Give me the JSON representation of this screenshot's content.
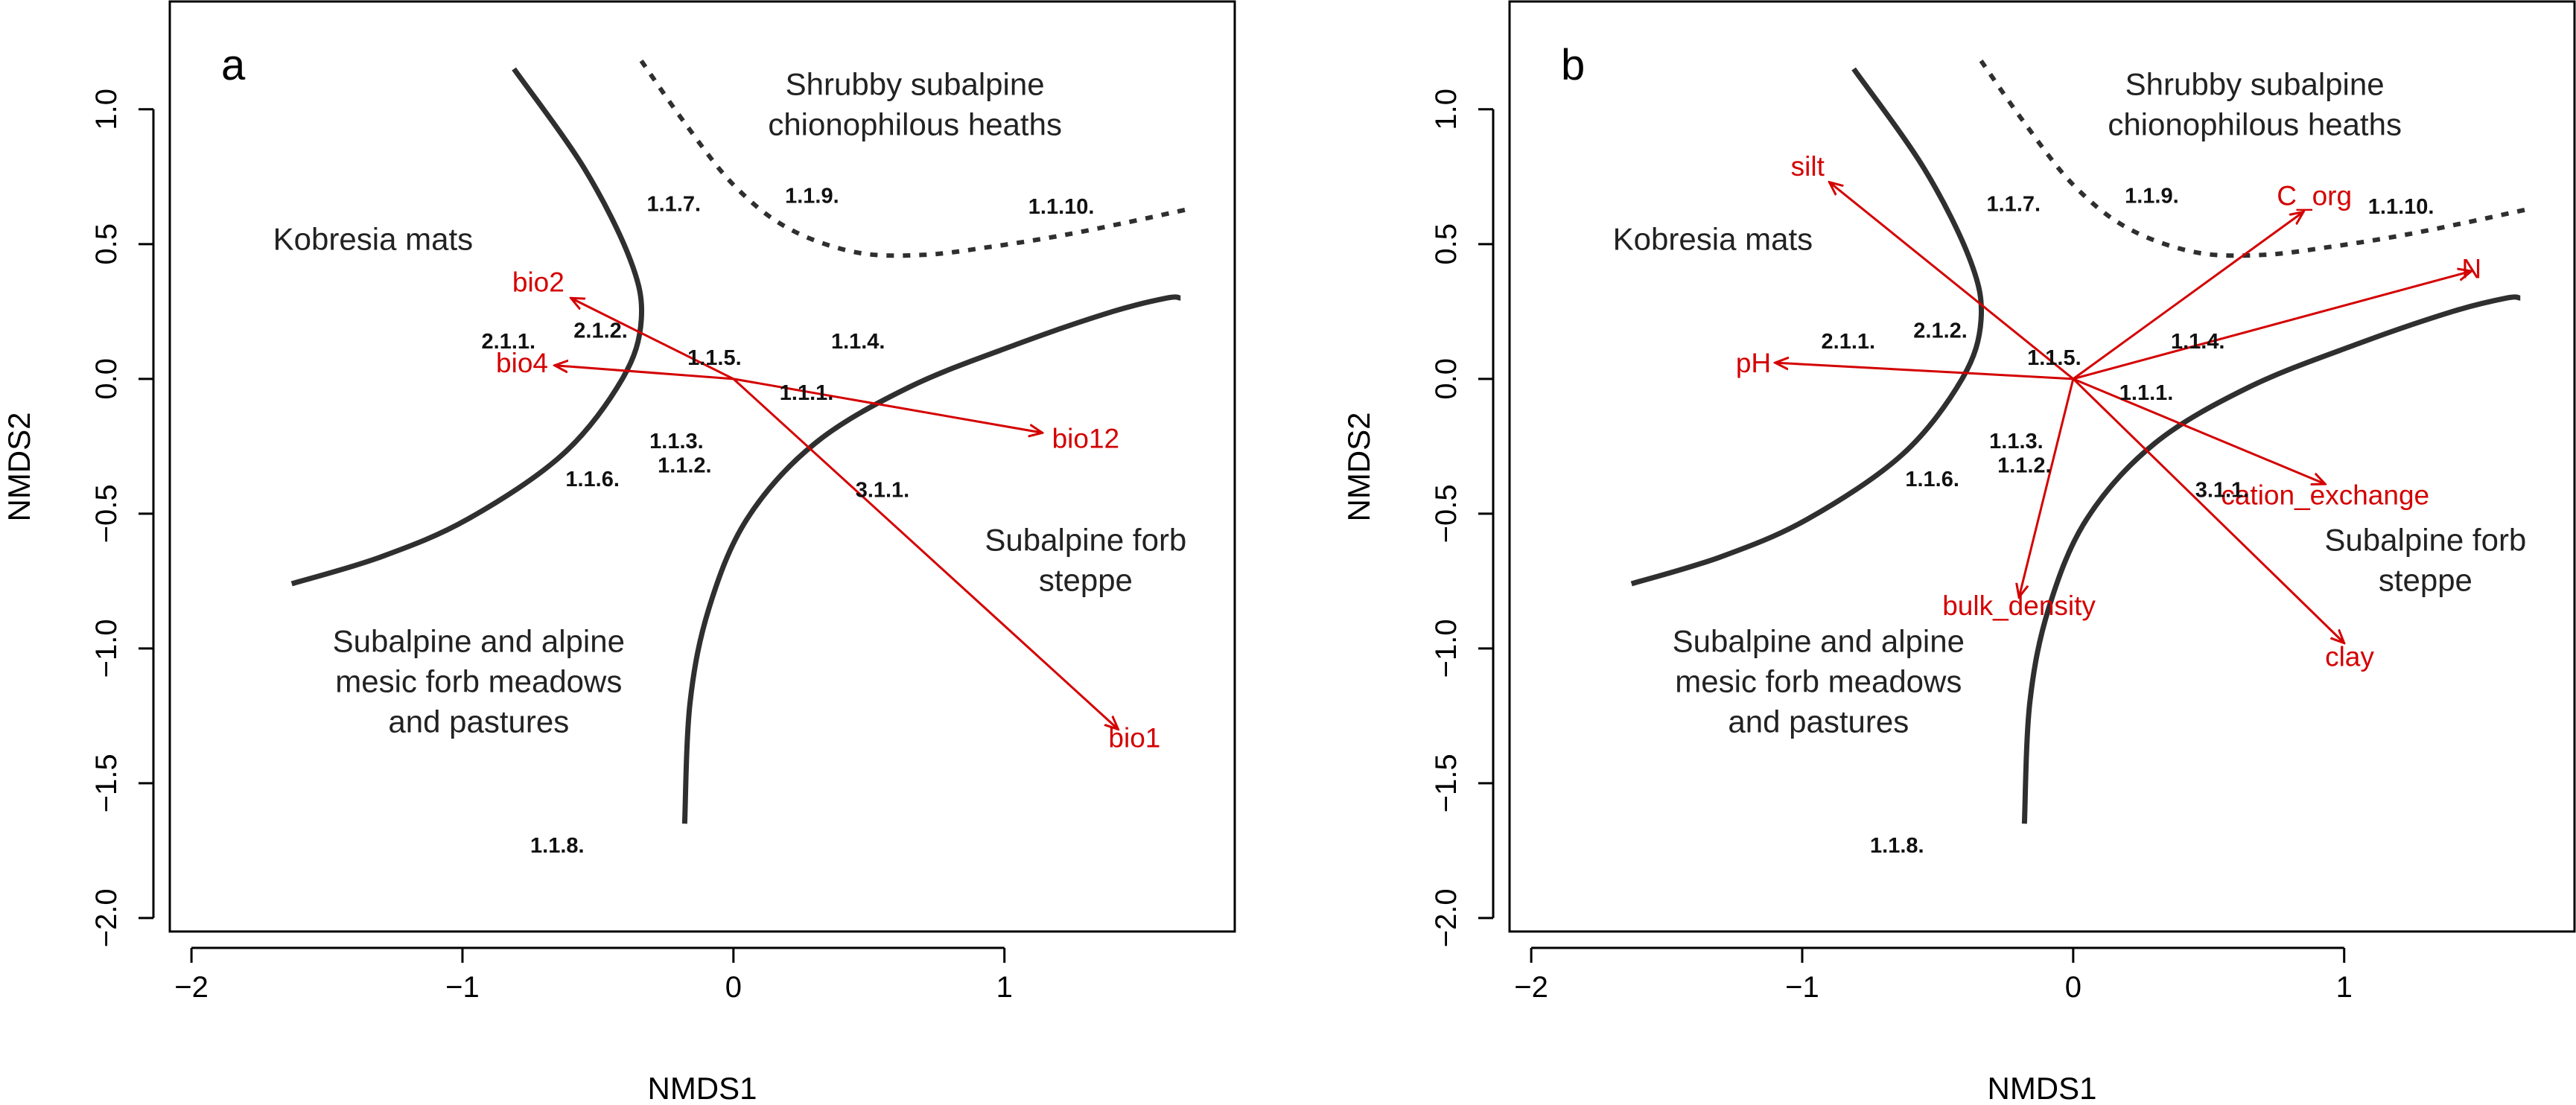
{
  "chart_data": [
    {
      "type": "scatter",
      "panel_label": "a",
      "xlabel": "NMDS1",
      "ylabel": "NMDS2",
      "xlim": [
        -2.08,
        1.85
      ],
      "ylim": [
        -2.05,
        1.4
      ],
      "x_ticks": [
        -2,
        -1,
        0,
        1
      ],
      "y_ticks": [
        -2.0,
        -1.5,
        -1.0,
        -0.5,
        0.0,
        0.5,
        1.0
      ],
      "x_tick_labels": [
        "−2",
        "−1",
        "0",
        "1"
      ],
      "y_tick_labels": [
        "−2.0",
        "−1.5",
        "−1.0",
        "−0.5",
        "0.0",
        "0.5",
        "1.0"
      ],
      "grid": false,
      "points": [
        {
          "label": "1.1.7.",
          "x": -0.22,
          "y": 0.65
        },
        {
          "label": "1.1.9.",
          "x": 0.29,
          "y": 0.68
        },
        {
          "label": "1.1.10.",
          "x": 1.21,
          "y": 0.64
        },
        {
          "label": "2.1.1.",
          "x": -0.83,
          "y": 0.14
        },
        {
          "label": "2.1.2.",
          "x": -0.49,
          "y": 0.18
        },
        {
          "label": "1.1.5.",
          "x": -0.07,
          "y": 0.08
        },
        {
          "label": "1.1.4.",
          "x": 0.46,
          "y": 0.14
        },
        {
          "label": "1.1.1.",
          "x": 0.27,
          "y": -0.05
        },
        {
          "label": "1.1.3.",
          "x": -0.21,
          "y": -0.23
        },
        {
          "label": "1.1.2.",
          "x": -0.18,
          "y": -0.32
        },
        {
          "label": "1.1.6.",
          "x": -0.52,
          "y": -0.37
        },
        {
          "label": "3.1.1.",
          "x": 0.55,
          "y": -0.41
        },
        {
          "label": "1.1.8.",
          "x": -0.65,
          "y": -1.73
        }
      ],
      "vectors": [
        {
          "label": "bio2",
          "x": -0.6,
          "y": 0.3,
          "label_x": -0.72,
          "label_y": 0.36
        },
        {
          "label": "bio4",
          "x": -0.66,
          "y": 0.05,
          "label_x": -0.78,
          "label_y": 0.06
        },
        {
          "label": "bio12",
          "x": 1.14,
          "y": -0.2,
          "label_x": 1.3,
          "label_y": -0.22
        },
        {
          "label": "bio1",
          "x": 1.42,
          "y": -1.3,
          "label_x": 1.48,
          "label_y": -1.33
        }
      ],
      "regions": [
        {
          "label_lines": [
            "Shrubby subalpine",
            "chionophilous heaths"
          ],
          "x": 0.67,
          "y": 1.02
        },
        {
          "label_lines": [
            "Kobresia mats"
          ],
          "x": -1.33,
          "y": 0.52
        },
        {
          "label_lines": [
            "Subalpine forb",
            "steppe"
          ],
          "x": 1.3,
          "y": -0.67
        },
        {
          "label_lines": [
            "Subalpine and alpine",
            "mesic forb meadows",
            "and pastures"
          ],
          "x": -0.94,
          "y": -1.12
        }
      ],
      "boundaries": [
        {
          "style": "solid",
          "points": [
            [
              -0.81,
              1.15
            ],
            [
              -0.55,
              0.78
            ],
            [
              -0.38,
              0.44
            ],
            [
              -0.34,
              0.22
            ],
            [
              -0.41,
              0.0
            ],
            [
              -0.63,
              -0.28
            ],
            [
              -0.98,
              -0.52
            ],
            [
              -1.3,
              -0.66
            ],
            [
              -1.63,
              -0.76
            ]
          ]
        },
        {
          "style": "solid",
          "points": [
            [
              -0.18,
              -1.65
            ],
            [
              -0.16,
              -1.2
            ],
            [
              -0.09,
              -0.85
            ],
            [
              0.05,
              -0.52
            ],
            [
              0.3,
              -0.24
            ],
            [
              0.65,
              -0.03
            ],
            [
              1.05,
              0.13
            ],
            [
              1.4,
              0.25
            ],
            [
              1.6,
              0.3
            ],
            [
              1.65,
              0.3
            ]
          ]
        },
        {
          "style": "dotted",
          "points": [
            [
              -0.34,
              1.18
            ],
            [
              -0.18,
              0.95
            ],
            [
              0.0,
              0.72
            ],
            [
              0.2,
              0.56
            ],
            [
              0.45,
              0.47
            ],
            [
              0.7,
              0.46
            ],
            [
              0.95,
              0.49
            ],
            [
              1.2,
              0.53
            ],
            [
              1.45,
              0.58
            ],
            [
              1.68,
              0.63
            ]
          ]
        }
      ]
    },
    {
      "type": "scatter",
      "panel_label": "b",
      "xlabel": "NMDS1",
      "ylabel": "NMDS2",
      "xlim": [
        -2.08,
        1.85
      ],
      "ylim": [
        -2.05,
        1.4
      ],
      "x_ticks": [
        -2,
        -1,
        0,
        1
      ],
      "y_ticks": [
        -2.0,
        -1.5,
        -1.0,
        -0.5,
        0.0,
        0.5,
        1.0
      ],
      "x_tick_labels": [
        "−2",
        "−1",
        "0",
        "1"
      ],
      "y_tick_labels": [
        "−2.0",
        "−1.5",
        "−1.0",
        "−0.5",
        "0.0",
        "0.5",
        "1.0"
      ],
      "grid": false,
      "points": [
        {
          "label": "1.1.7.",
          "x": -0.22,
          "y": 0.65
        },
        {
          "label": "1.1.9.",
          "x": 0.29,
          "y": 0.68
        },
        {
          "label": "1.1.10.",
          "x": 1.21,
          "y": 0.64
        },
        {
          "label": "2.1.1.",
          "x": -0.83,
          "y": 0.14
        },
        {
          "label": "2.1.2.",
          "x": -0.49,
          "y": 0.18
        },
        {
          "label": "1.1.5.",
          "x": -0.07,
          "y": 0.08
        },
        {
          "label": "1.1.4.",
          "x": 0.46,
          "y": 0.14
        },
        {
          "label": "1.1.1.",
          "x": 0.27,
          "y": -0.05
        },
        {
          "label": "1.1.3.",
          "x": -0.21,
          "y": -0.23
        },
        {
          "label": "1.1.2.",
          "x": -0.18,
          "y": -0.32
        },
        {
          "label": "1.1.6.",
          "x": -0.52,
          "y": -0.37
        },
        {
          "label": "3.1.1.",
          "x": 0.55,
          "y": -0.41
        },
        {
          "label": "1.1.8.",
          "x": -0.65,
          "y": -1.73
        }
      ],
      "vectors": [
        {
          "label": "silt",
          "x": -0.9,
          "y": 0.73,
          "label_x": -0.98,
          "label_y": 0.79
        },
        {
          "label": "pH",
          "x": -1.1,
          "y": 0.06,
          "label_x": -1.18,
          "label_y": 0.06
        },
        {
          "label": "C_org",
          "x": 0.85,
          "y": 0.62,
          "label_x": 0.89,
          "label_y": 0.68
        },
        {
          "label": "N",
          "x": 1.47,
          "y": 0.4,
          "label_x": 1.47,
          "label_y": 0.41
        },
        {
          "label": "cation_exchange",
          "x": 0.93,
          "y": -0.39,
          "label_x": 0.93,
          "label_y": -0.43
        },
        {
          "label": "bulk_density",
          "x": -0.2,
          "y": -0.81,
          "label_x": -0.2,
          "label_y": -0.84
        },
        {
          "label": "clay",
          "x": 1.0,
          "y": -0.98,
          "label_x": 1.02,
          "label_y": -1.03
        }
      ],
      "regions": [
        {
          "label_lines": [
            "Shrubby subalpine",
            "chionophilous heaths"
          ],
          "x": 0.67,
          "y": 1.02
        },
        {
          "label_lines": [
            "Kobresia mats"
          ],
          "x": -1.33,
          "y": 0.52
        },
        {
          "label_lines": [
            "Subalpine forb",
            "steppe"
          ],
          "x": 1.3,
          "y": -0.67
        },
        {
          "label_lines": [
            "Subalpine and alpine",
            "mesic forb meadows",
            "and pastures"
          ],
          "x": -0.94,
          "y": -1.12
        }
      ],
      "boundaries": [
        {
          "style": "solid",
          "points": [
            [
              -0.81,
              1.15
            ],
            [
              -0.55,
              0.78
            ],
            [
              -0.38,
              0.44
            ],
            [
              -0.34,
              0.22
            ],
            [
              -0.41,
              0.0
            ],
            [
              -0.63,
              -0.28
            ],
            [
              -0.98,
              -0.52
            ],
            [
              -1.3,
              -0.66
            ],
            [
              -1.63,
              -0.76
            ]
          ]
        },
        {
          "style": "solid",
          "points": [
            [
              -0.18,
              -1.65
            ],
            [
              -0.16,
              -1.2
            ],
            [
              -0.09,
              -0.85
            ],
            [
              0.05,
              -0.52
            ],
            [
              0.3,
              -0.24
            ],
            [
              0.65,
              -0.03
            ],
            [
              1.05,
              0.13
            ],
            [
              1.4,
              0.25
            ],
            [
              1.6,
              0.3
            ],
            [
              1.65,
              0.3
            ]
          ]
        },
        {
          "style": "dotted",
          "points": [
            [
              -0.34,
              1.18
            ],
            [
              -0.18,
              0.95
            ],
            [
              0.0,
              0.72
            ],
            [
              0.2,
              0.56
            ],
            [
              0.45,
              0.47
            ],
            [
              0.7,
              0.46
            ],
            [
              0.95,
              0.49
            ],
            [
              1.2,
              0.53
            ],
            [
              1.45,
              0.58
            ],
            [
              1.68,
              0.63
            ]
          ]
        }
      ]
    }
  ],
  "colors": {
    "axis": "#000000",
    "boundary": "#2f2f2f",
    "vector": "#d40000",
    "text": "#222222"
  }
}
